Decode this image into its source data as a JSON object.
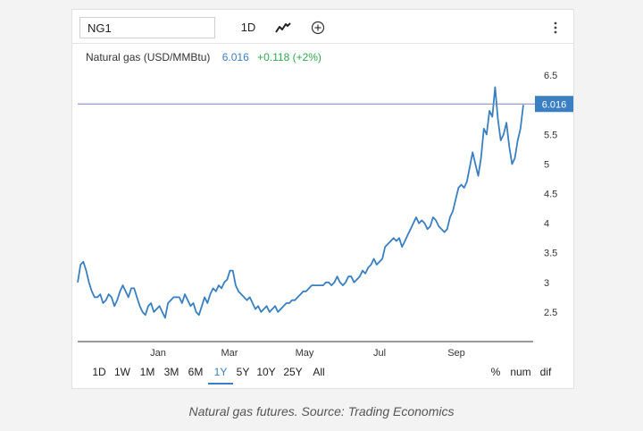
{
  "toolbar": {
    "symbol": "NG1",
    "interval_label": "1D",
    "charttype_icon": "line-chart-icon",
    "compare_icon": "plus-circle-icon",
    "more_icon": "vertical-dots-icon"
  },
  "legend": {
    "label": "Natural gas (USD/MMBtu)",
    "last": "6.016",
    "change": "+0.118 (+2%)"
  },
  "ranges": [
    "1D",
    "1W",
    "1M",
    "3M",
    "6M",
    "1Y",
    "5Y",
    "10Y",
    "25Y",
    "All"
  ],
  "active_range": "1Y",
  "options": [
    "%",
    "num",
    "dif"
  ],
  "caption": "Natural gas futures. Source: Trading Economics",
  "colors": {
    "line": "#3a7fc1",
    "price_line": "#7b80c8",
    "change": "#2fa84f"
  },
  "chart_data": {
    "type": "line",
    "xlabel": "",
    "ylabel": "",
    "x_tick_labels": [
      "Jan",
      "Mar",
      "May",
      "Jul",
      "Sep"
    ],
    "y_ticks": [
      2.5,
      3,
      3.5,
      4,
      4.5,
      5,
      5.5,
      6,
      6.5
    ],
    "ylim": [
      2.0,
      6.7
    ],
    "last_value_label": "6.016",
    "grid": false,
    "series": [
      {
        "values": [
          3.0,
          3.3,
          3.35,
          3.2,
          3.0,
          2.85,
          2.75,
          2.75,
          2.8,
          2.65,
          2.7,
          2.8,
          2.75,
          2.6,
          2.7,
          2.85,
          2.95,
          2.85,
          2.75,
          2.9,
          2.9,
          2.75,
          2.6,
          2.5,
          2.45,
          2.6,
          2.65,
          2.5,
          2.55,
          2.6,
          2.5,
          2.4,
          2.65,
          2.7,
          2.75,
          2.75,
          2.75,
          2.65,
          2.8,
          2.7,
          2.6,
          2.65,
          2.5,
          2.45,
          2.6,
          2.75,
          2.65,
          2.8,
          2.9,
          2.85,
          2.95,
          2.9,
          3.0,
          3.05,
          3.2,
          3.2,
          2.95,
          2.85,
          2.8,
          2.75,
          2.7,
          2.75,
          2.65,
          2.55,
          2.6,
          2.5,
          2.55,
          2.6,
          2.5,
          2.55,
          2.6,
          2.5,
          2.55,
          2.6,
          2.65,
          2.65,
          2.7,
          2.7,
          2.75,
          2.8,
          2.85,
          2.85,
          2.9,
          2.95,
          2.95,
          2.95,
          2.95,
          2.95,
          3.0,
          3.0,
          2.95,
          3.0,
          3.1,
          3.0,
          2.95,
          3.0,
          3.1,
          3.1,
          3.0,
          3.05,
          3.1,
          3.2,
          3.15,
          3.25,
          3.3,
          3.4,
          3.3,
          3.35,
          3.4,
          3.6,
          3.65,
          3.7,
          3.75,
          3.7,
          3.75,
          3.6,
          3.7,
          3.8,
          3.9,
          4.0,
          4.1,
          4.0,
          4.05,
          4.0,
          3.9,
          3.95,
          4.1,
          4.05,
          3.95,
          3.9,
          3.85,
          3.9,
          4.1,
          4.2,
          4.4,
          4.6,
          4.65,
          4.6,
          4.7,
          4.95,
          5.2,
          5.0,
          4.8,
          5.1,
          5.6,
          5.5,
          5.9,
          5.8,
          6.3,
          5.75,
          5.4,
          5.5,
          5.7,
          5.3,
          5.0,
          5.1,
          5.4,
          5.6,
          6.0
        ]
      }
    ]
  }
}
